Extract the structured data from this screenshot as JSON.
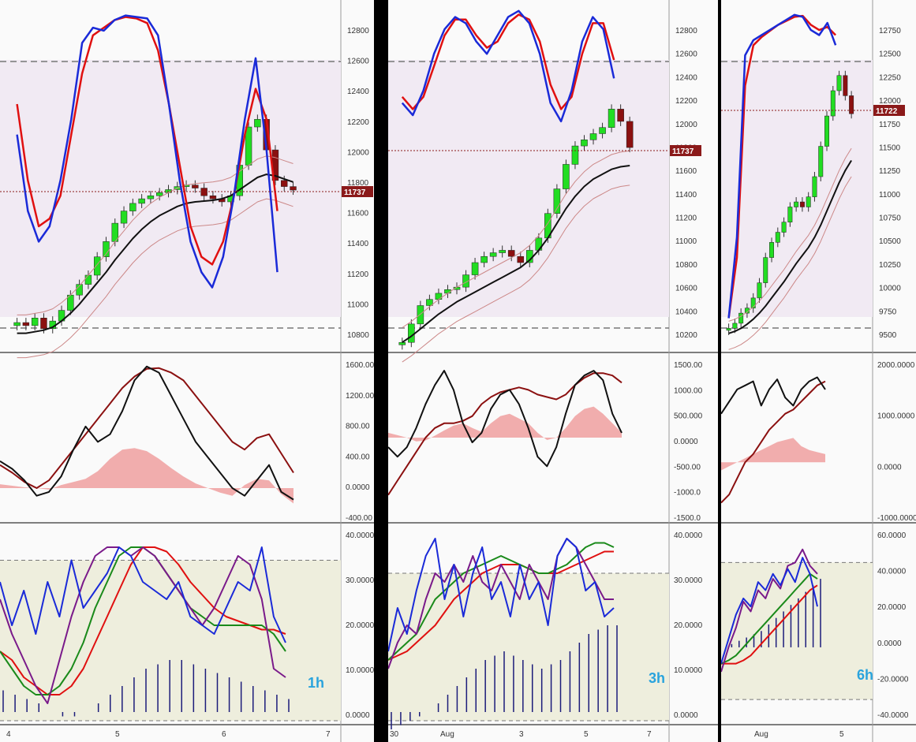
{
  "colors": {
    "background": "#fafafa",
    "pane_border": "#555555",
    "bull_candle": "#22dd22",
    "bear_candle": "#8b1010",
    "stoch_blue": "#1a2ad8",
    "stoch_red": "#e01010",
    "ma_black": "#111111",
    "band_fill": "#e6d3dd",
    "price_tag": "#8b1a1a",
    "annotation": "#29a3dd",
    "hist_navy": "#1c1c7a",
    "range_fill": "#eeeedd"
  },
  "chart_data": [
    {
      "id": "col-1h",
      "type": "line",
      "timeframe_label": "1h",
      "price_axis_ticks": [
        "12800",
        "12600",
        "12400",
        "12200",
        "12000",
        "11800",
        "11600",
        "11400",
        "11200",
        "11000",
        "10800"
      ],
      "price_tag": "11737",
      "osc_axis_ticks": [
        "1600.00",
        "1200.00",
        "800.00",
        "400.00",
        "0.0000",
        "-400.00"
      ],
      "rsi_axis_ticks": [
        "40.0000",
        "30.0000",
        "20.0000",
        "10.0000",
        "0.0000"
      ],
      "x_ticks": [
        "4",
        "5",
        "6",
        "7"
      ],
      "price": {
        "ylim": [
          10700,
          12950
        ],
        "close": [
          10870,
          10850,
          10900,
          10830,
          10880,
          10950,
          11050,
          11120,
          11180,
          11300,
          11400,
          11520,
          11600,
          11650,
          11680,
          11700,
          11720,
          11740,
          11760,
          11770,
          11750,
          11700,
          11680,
          11660,
          11700,
          11900,
          12150,
          12200,
          12000,
          11800,
          11760,
          11737
        ],
        "ma": [
          10800,
          10800,
          10810,
          10820,
          10840,
          10880,
          10930,
          10990,
          11060,
          11130,
          11200,
          11280,
          11350,
          11420,
          11480,
          11530,
          11570,
          11600,
          11630,
          11650,
          11660,
          11665,
          11670,
          11680,
          11700,
          11740,
          11780,
          11820,
          11840,
          11830,
          11810,
          11790
        ],
        "stoch_blue": [
          12100,
          11600,
          11400,
          11500,
          11800,
          12200,
          12700,
          12800,
          12780,
          12850,
          12880,
          12870,
          12860,
          12750,
          12300,
          11800,
          11400,
          11200,
          11100,
          11300,
          11700,
          12200,
          12600,
          12000,
          11200
        ],
        "stoch_red": [
          12300,
          11800,
          11500,
          11550,
          11700,
          12100,
          12500,
          12750,
          12800,
          12850,
          12870,
          12860,
          12830,
          12650,
          12300,
          11900,
          11500,
          11300,
          11250,
          11400,
          11700,
          12100,
          12400,
          12200,
          11600
        ]
      },
      "osc": {
        "ylim": [
          -400,
          1650
        ],
        "black": [
          350,
          250,
          100,
          -100,
          -50,
          150,
          500,
          800,
          600,
          700,
          1000,
          1400,
          1580,
          1500,
          1200,
          900,
          600,
          400,
          200,
          0,
          -100,
          100,
          300,
          -50,
          -150
        ],
        "red": [
          300,
          200,
          80,
          0,
          100,
          300,
          500,
          700,
          900,
          1100,
          1300,
          1450,
          1550,
          1560,
          1500,
          1400,
          1200,
          1000,
          800,
          600,
          500,
          650,
          700,
          450,
          200
        ],
        "hist": [
          50,
          30,
          10,
          0,
          -20,
          40,
          80,
          120,
          220,
          380,
          500,
          520,
          480,
          380,
          260,
          150,
          60,
          0,
          -60,
          -100,
          40,
          120,
          100,
          -80,
          -200
        ]
      },
      "rsi": {
        "ylim": [
          -2,
          42
        ],
        "upper": 35,
        "lower": -2,
        "blue": [
          30,
          20,
          28,
          18,
          30,
          22,
          35,
          24,
          28,
          32,
          38,
          36,
          30,
          28,
          26,
          30,
          22,
          20,
          18,
          24,
          30,
          28,
          38,
          22,
          16
        ],
        "purple": [
          26,
          18,
          12,
          6,
          2,
          12,
          22,
          30,
          36,
          38,
          38,
          36,
          38,
          36,
          32,
          28,
          24,
          20,
          24,
          30,
          36,
          34,
          26,
          10,
          8
        ],
        "green": [
          14,
          10,
          6,
          4,
          4,
          6,
          10,
          16,
          24,
          30,
          36,
          38,
          38,
          36,
          32,
          28,
          24,
          22,
          20,
          20,
          20,
          20,
          20,
          18,
          14
        ],
        "red": [
          14,
          12,
          8,
          6,
          4,
          4,
          6,
          10,
          16,
          22,
          28,
          34,
          38,
          38,
          37,
          34,
          30,
          27,
          24,
          22,
          21,
          20,
          19,
          19,
          18
        ],
        "hist": [
          5,
          4,
          3,
          2,
          0,
          -1,
          -1,
          0,
          2,
          4,
          6,
          8,
          10,
          11,
          12,
          12,
          11,
          10,
          9,
          8,
          7,
          6,
          5,
          4,
          3
        ]
      }
    },
    {
      "id": "col-3h",
      "type": "line",
      "timeframe_label": "3h",
      "price_axis_ticks": [
        "12800",
        "12600",
        "12400",
        "12200",
        "12000",
        "11800",
        "11600",
        "11400",
        "11200",
        "11000",
        "10800",
        "10600",
        "10400",
        "10200"
      ],
      "price_tag": "11737",
      "osc_axis_ticks": [
        "1500.00",
        "1000.00",
        "500.000",
        "0.0000",
        "-500.00",
        "-1000.0",
        "-1500.0"
      ],
      "rsi_axis_ticks": [
        "40.0000",
        "30.0000",
        "20.0000",
        "10.0000",
        "0.0000"
      ],
      "x_ticks": [
        "30",
        "Aug",
        "3",
        "5",
        "7"
      ],
      "price": {
        "ylim": [
          10100,
          12900
        ],
        "close": [
          10150,
          10300,
          10450,
          10500,
          10550,
          10580,
          10600,
          10700,
          10800,
          10850,
          10880,
          10900,
          10850,
          10800,
          10900,
          11000,
          11200,
          11400,
          11600,
          11750,
          11800,
          11850,
          11900,
          12050,
          11950,
          11737
        ],
        "ma": [
          10150,
          10200,
          10260,
          10320,
          10380,
          10430,
          10480,
          10520,
          10560,
          10600,
          10640,
          10680,
          10720,
          10760,
          10820,
          10900,
          11000,
          11120,
          11240,
          11340,
          11420,
          11480,
          11520,
          11560,
          11580,
          11590
        ],
        "stoch_blue": [
          12100,
          12000,
          12200,
          12500,
          12700,
          12800,
          12750,
          12600,
          12500,
          12650,
          12800,
          12850,
          12750,
          12500,
          12100,
          11950,
          12200,
          12600,
          12800,
          12700,
          12300
        ],
        "stoch_red": [
          12150,
          12050,
          12150,
          12400,
          12650,
          12780,
          12780,
          12650,
          12550,
          12600,
          12750,
          12820,
          12780,
          12600,
          12250,
          12050,
          12150,
          12500,
          12750,
          12750,
          12450
        ]
      },
      "osc": {
        "ylim": [
          -1700,
          1600
        ],
        "black": [
          -200,
          -400,
          -200,
          200,
          700,
          1100,
          1400,
          1000,
          300,
          -100,
          100,
          600,
          900,
          1000,
          700,
          200,
          -400,
          -600,
          -200,
          500,
          1100,
          1300,
          1400,
          1200,
          500,
          100
        ],
        "red": [
          -1200,
          -900,
          -600,
          -300,
          0,
          200,
          300,
          300,
          350,
          450,
          700,
          850,
          950,
          1000,
          1050,
          1000,
          900,
          850,
          800,
          900,
          1100,
          1250,
          1350,
          1350,
          1300,
          1150
        ],
        "hist": [
          100,
          50,
          0,
          -80,
          -60,
          40,
          150,
          250,
          300,
          200,
          120,
          300,
          450,
          500,
          400,
          300,
          100,
          -50,
          0,
          200,
          450,
          600,
          650,
          500,
          300,
          100
        ]
      },
      "rsi": {
        "ylim": [
          -2,
          42
        ],
        "upper": 32,
        "lower": -2,
        "blue": [
          14,
          24,
          18,
          28,
          36,
          40,
          26,
          34,
          22,
          32,
          38,
          26,
          30,
          22,
          34,
          26,
          30,
          20,
          36,
          40,
          38,
          28,
          30,
          22,
          24
        ],
        "purple": [
          10,
          16,
          20,
          18,
          26,
          32,
          30,
          34,
          30,
          36,
          30,
          28,
          34,
          30,
          26,
          34,
          30,
          26,
          36,
          40,
          38,
          34,
          30,
          26,
          26
        ],
        "green": [
          12,
          14,
          16,
          18,
          22,
          26,
          28,
          30,
          32,
          33,
          34,
          35,
          36,
          35,
          34,
          33,
          32,
          32,
          33,
          34,
          36,
          38,
          39,
          39,
          38
        ],
        "red": [
          12,
          13,
          14,
          16,
          18,
          20,
          23,
          26,
          28,
          30,
          32,
          33,
          34,
          34,
          34,
          33,
          32,
          32,
          32,
          33,
          34,
          35,
          36,
          37,
          37
        ],
        "hist": [
          -4,
          -3,
          -2,
          -1,
          0,
          2,
          4,
          6,
          8,
          10,
          12,
          13,
          14,
          13,
          12,
          11,
          10,
          11,
          12,
          14,
          16,
          18,
          19,
          20,
          20
        ]
      }
    },
    {
      "id": "col-6h",
      "type": "line",
      "timeframe_label": "6h",
      "price_axis_ticks": [
        "12750",
        "12500",
        "12250",
        "12000",
        "11750",
        "11500",
        "11250",
        "11000",
        "10750",
        "10500",
        "10250",
        "10000",
        "9750",
        "9500"
      ],
      "price_tag": "11722",
      "osc_axis_ticks": [
        "2000.0000",
        "1000.0000",
        "0.0000",
        "-1000.0000"
      ],
      "rsi_axis_ticks": [
        "60.0000",
        "40.0000",
        "20.0000",
        "0.0000",
        "-20.0000",
        "-40.0000"
      ],
      "x_ticks": [
        "Aug",
        "5"
      ],
      "price": {
        "ylim": [
          9400,
          12800
        ],
        "close": [
          9600,
          9650,
          9750,
          9800,
          9900,
          10050,
          10300,
          10450,
          10550,
          10650,
          10800,
          10850,
          10800,
          10900,
          11100,
          11400,
          11700,
          11950,
          12100,
          11900,
          11722
        ],
        "ma": [
          9550,
          9570,
          9600,
          9640,
          9690,
          9750,
          9820,
          9900,
          9980,
          10060,
          10150,
          10240,
          10320,
          10400,
          10500,
          10620,
          10760,
          10900,
          11040,
          11160,
          11260
        ],
        "stoch_blue": [
          9700,
          10500,
          12300,
          12450,
          12500,
          12550,
          12600,
          12650,
          12700,
          12680,
          12550,
          12500,
          12620,
          12400
        ],
        "stoch_red": [
          9700,
          10300,
          12000,
          12400,
          12480,
          12540,
          12600,
          12640,
          12680,
          12690,
          12600,
          12550,
          12580,
          12500
        ]
      },
      "osc": {
        "ylim": [
          -1400,
          2500
        ],
        "black": [
          1200,
          1500,
          1800,
          1900,
          2000,
          1400,
          1800,
          2050,
          1600,
          1400,
          1800,
          2000,
          2100,
          1800
        ],
        "red": [
          -1000,
          -800,
          -400,
          0,
          200,
          500,
          800,
          1000,
          1200,
          1300,
          1500,
          1700,
          1900,
          2000
        ],
        "hist": [
          -200,
          -100,
          0,
          100,
          200,
          300,
          400,
          500,
          550,
          600,
          400,
          300,
          250,
          200
        ]
      },
      "rsi": {
        "ylim": [
          -45,
          72
        ],
        "upper": 52,
        "lower": -32,
        "blue": [
          -10,
          5,
          20,
          30,
          25,
          40,
          35,
          45,
          38,
          48,
          40,
          55,
          45,
          25
        ],
        "purple": [
          -15,
          0,
          12,
          28,
          22,
          35,
          30,
          42,
          36,
          50,
          52,
          60,
          50,
          45
        ],
        "green": [
          -10,
          -8,
          -5,
          0,
          5,
          10,
          15,
          20,
          25,
          30,
          35,
          40,
          45,
          42
        ],
        "red": [
          -10,
          -10,
          -10,
          -8,
          -5,
          0,
          5,
          10,
          15,
          20,
          25,
          30,
          35,
          38
        ],
        "hist": [
          0,
          2,
          4,
          6,
          8,
          10,
          14,
          18,
          22,
          26,
          30,
          34,
          38,
          42
        ]
      }
    }
  ]
}
